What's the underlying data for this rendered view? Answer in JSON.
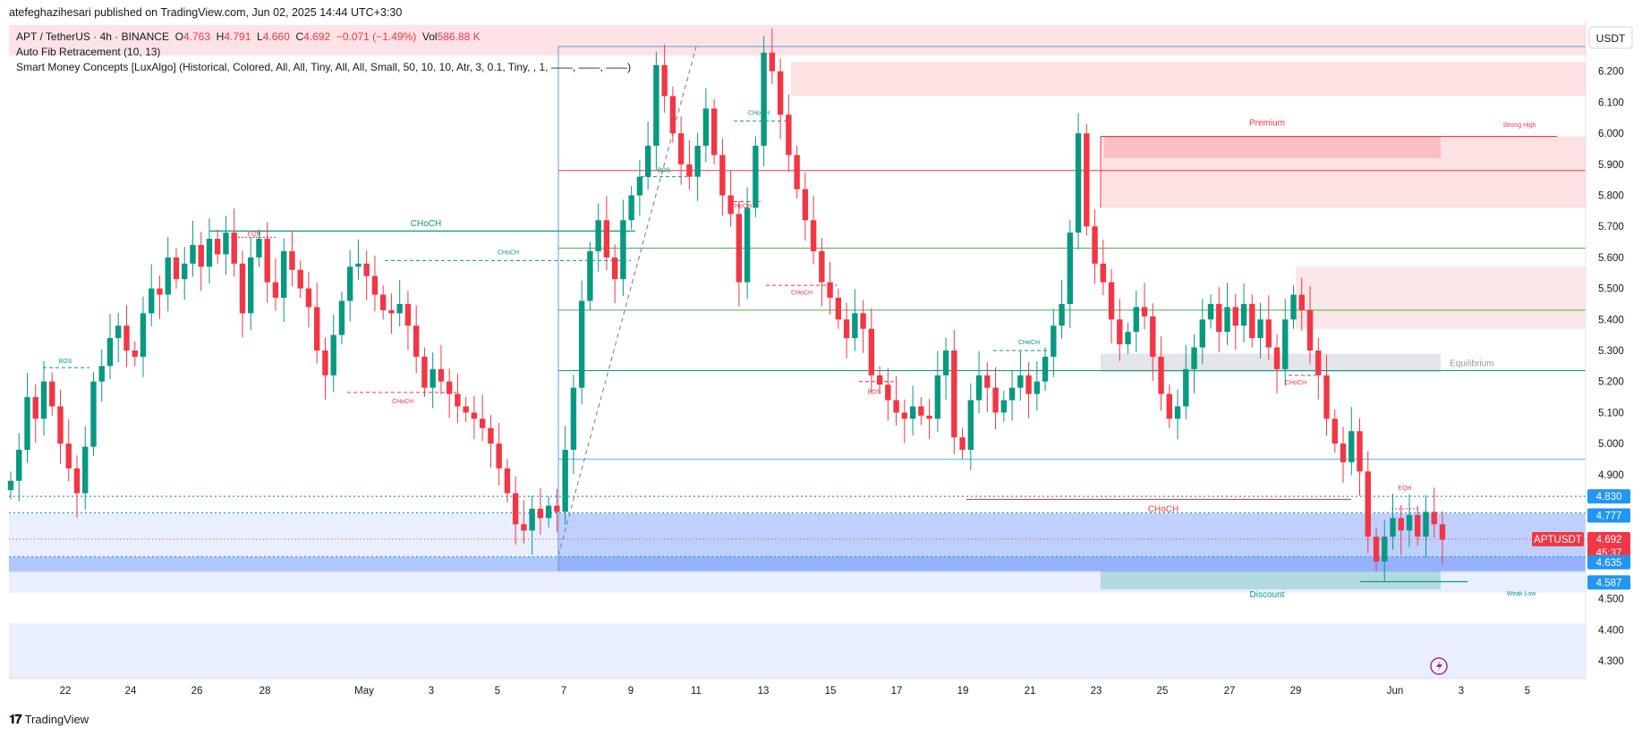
{
  "publisher": "atefeghazihesari published on TradingView.com, Jun 02, 2025 14:44 UTC+3:30",
  "footer_brand": "TradingView",
  "legend": {
    "symbol": "APT / TetherUS · 4h · BINANCE",
    "o_label": "O",
    "o_value": "4.763",
    "h_label": "H",
    "h_value": "4.791",
    "l_label": "L",
    "l_value": "4.660",
    "c_label": "C",
    "c_value": "4.692",
    "change": "−0.071 (−1.49%)",
    "vol_label": "Vol",
    "vol_value": "586.88 K",
    "indicator1": "Auto Fib Retracement (10, 13)",
    "indicator2": "Smart Money Concepts [LuxAlgo] (Historical, Colored, All, All, Tiny, All, All, Small, 50, 10, 10, Atr, 3, 0.1, Tiny, , 1, ——, ——, ——)"
  },
  "colors": {
    "up": "#089981",
    "down": "#f23645",
    "accent": "#2962ff",
    "premium_zone": "#f23645",
    "discount_zone": "#2962ff"
  },
  "chart_data": {
    "type": "candlestick",
    "currency": "USDT",
    "yticks": [
      "6.200",
      "6.100",
      "6.000",
      "5.900",
      "5.800",
      "5.700",
      "5.600",
      "5.500",
      "5.400",
      "5.300",
      "5.200",
      "5.100",
      "5.000",
      "4.900",
      "4.500",
      "4.400",
      "4.300"
    ],
    "ylim": [
      4.22,
      6.28
    ],
    "xticks": [
      "22",
      "24",
      "26",
      "28",
      "May",
      "3",
      "5",
      "7",
      "9",
      "11",
      "13",
      "15",
      "17",
      "19",
      "21",
      "23",
      "25",
      "27",
      "29",
      "Jun",
      "3",
      "5"
    ],
    "price_labels": [
      {
        "text": "4.830",
        "value": 4.83,
        "color": "#2196f3"
      },
      {
        "text": "4.777",
        "value": 4.777,
        "color": "#2196f3"
      },
      {
        "text": "APTUSDT",
        "value": 4.692,
        "color": "#f23645"
      },
      {
        "text": "4.692",
        "value": 4.692,
        "color": "#f23645"
      },
      {
        "text": "45:37",
        "value": 4.692,
        "color": "#f23645"
      },
      {
        "text": "4.635",
        "value": 4.635,
        "color": "#2196f3"
      },
      {
        "text": "4.587",
        "value": 4.587,
        "color": "#2196f3"
      }
    ],
    "annotations": {
      "premium": "Premium",
      "equilibrium": "Equilibrium",
      "discount": "Discount",
      "strong_high": "Strong High",
      "weak_low": "Weak Low",
      "choch_big": "CHoCH",
      "choch_mid": "CHoCH",
      "choch_small": "CHoCH",
      "bos": "BOS",
      "eqh": "EQH"
    },
    "closes": [
      4.88,
      4.98,
      5.15,
      5.08,
      5.2,
      5.12,
      5.0,
      4.92,
      4.84,
      4.99,
      5.2,
      5.25,
      5.34,
      5.38,
      5.3,
      5.28,
      5.42,
      5.5,
      5.48,
      5.6,
      5.53,
      5.58,
      5.64,
      5.57,
      5.66,
      5.61,
      5.68,
      5.58,
      5.42,
      5.6,
      5.66,
      5.52,
      5.47,
      5.62,
      5.56,
      5.5,
      5.44,
      5.3,
      5.22,
      5.35,
      5.46,
      5.57,
      5.58,
      5.54,
      5.48,
      5.43,
      5.42,
      5.45,
      5.38,
      5.28,
      5.18,
      5.24,
      5.2,
      5.16,
      5.12,
      5.1,
      5.08,
      5.05,
      5.0,
      4.92,
      4.84,
      4.74,
      4.72,
      4.79,
      4.76,
      4.8,
      4.78,
      4.98,
      5.18,
      5.46,
      5.62,
      5.72,
      5.6,
      5.53,
      5.72,
      5.8,
      5.86,
      5.96,
      6.22,
      6.12,
      6.0,
      5.9,
      5.86,
      5.96,
      6.08,
      5.93,
      5.8,
      5.74,
      5.52,
      5.76,
      5.96,
      6.26,
      6.2,
      6.06,
      5.93,
      5.82,
      5.72,
      5.62,
      5.52,
      5.47,
      5.4,
      5.34,
      5.42,
      5.37,
      5.22,
      5.19,
      5.14,
      5.1,
      5.08,
      5.12,
      5.09,
      5.08,
      5.22,
      5.3,
      5.02,
      4.98,
      5.14,
      5.22,
      5.18,
      5.1,
      5.14,
      5.18,
      5.22,
      5.16,
      5.2,
      5.28,
      5.38,
      5.45,
      5.68,
      6.0,
      5.7,
      5.58,
      5.52,
      5.4,
      5.32,
      5.36,
      5.44,
      5.41,
      5.28,
      5.16,
      5.08,
      5.12,
      5.24,
      5.31,
      5.4,
      5.45,
      5.36,
      5.44,
      5.38,
      5.45,
      5.34,
      5.4,
      5.31,
      5.24,
      5.4,
      5.48,
      5.43,
      5.3,
      5.22,
      5.08,
      5.0,
      4.94,
      5.04,
      4.91,
      4.7,
      4.62,
      4.7,
      4.76,
      4.72,
      4.77,
      4.7,
      4.78,
      4.74,
      4.69
    ]
  }
}
